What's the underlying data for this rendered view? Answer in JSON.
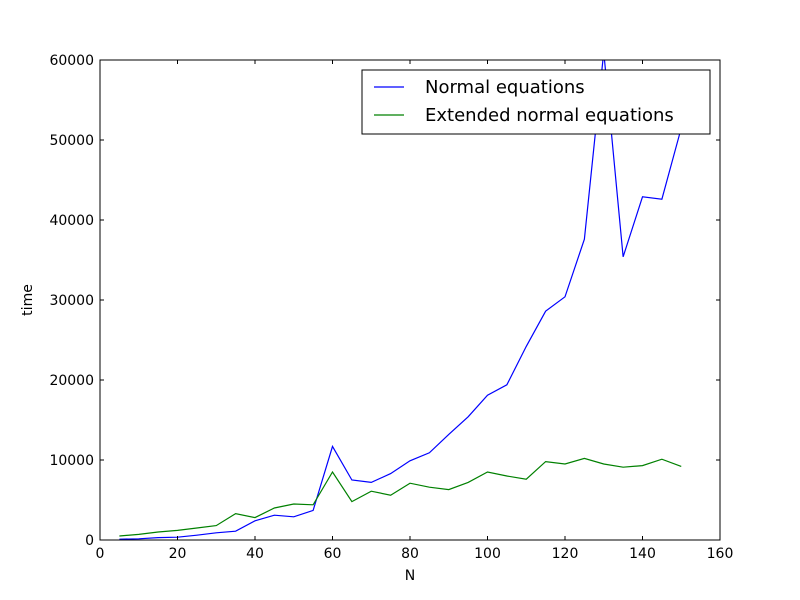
{
  "chart_data": {
    "type": "line",
    "title": "",
    "xlabel": "N",
    "ylabel": "time",
    "xlim": [
      0,
      160
    ],
    "ylim": [
      0,
      60000
    ],
    "xticks": [
      0,
      20,
      40,
      60,
      80,
      100,
      120,
      140,
      160
    ],
    "yticks": [
      0,
      10000,
      20000,
      30000,
      40000,
      50000,
      60000
    ],
    "grid": false,
    "legend_position": "top-right",
    "x": [
      5,
      10,
      15,
      20,
      25,
      30,
      35,
      40,
      45,
      50,
      55,
      60,
      65,
      70,
      75,
      80,
      85,
      90,
      95,
      100,
      105,
      110,
      115,
      120,
      125,
      130,
      135,
      140,
      145,
      150
    ],
    "series": [
      {
        "name": "Normal equations",
        "color": "#0000ff",
        "values": [
          100,
          150,
          300,
          350,
          600,
          900,
          1100,
          2400,
          3100,
          2900,
          3700,
          11700,
          7500,
          7200,
          8300,
          9900,
          10900,
          13200,
          15400,
          18100,
          19400,
          24200,
          28600,
          30400,
          37600,
          61000,
          35400,
          42900,
          42600,
          51500
        ]
      },
      {
        "name": "Extended normal equations",
        "color": "#008000",
        "values": [
          500,
          700,
          1000,
          1200,
          1500,
          1800,
          3300,
          2800,
          4000,
          4500,
          4400,
          8500,
          4800,
          6100,
          5600,
          7100,
          6600,
          6300,
          7200,
          8500,
          8000,
          7600,
          9800,
          9500,
          10200,
          9500,
          9100,
          9300,
          10100,
          9200
        ]
      }
    ]
  }
}
